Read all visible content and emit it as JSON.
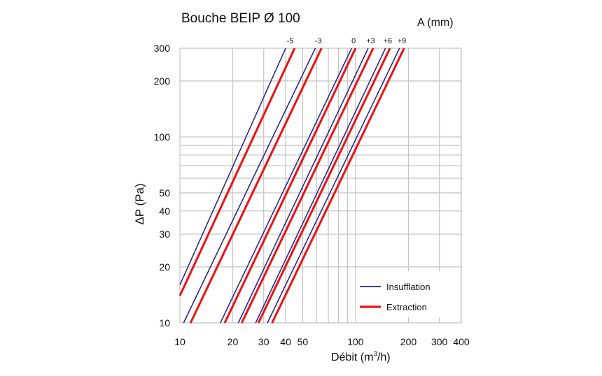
{
  "chart_data": {
    "type": "line",
    "title": "Bouche BEIP Ø 100",
    "curve_group_label": "A (mm)",
    "xlabel": {
      "prefix": "Débit (m",
      "sup": "3",
      "suffix": "/h)"
    },
    "ylabel": "ΔP (Pa)",
    "x_scale": "log",
    "y_scale": "log",
    "xlim": [
      10,
      400
    ],
    "ylim": [
      10,
      300
    ],
    "x_ticks": [
      "10",
      "20",
      "30",
      "40",
      "50",
      "100",
      "200",
      "300",
      "400"
    ],
    "y_ticks": [
      "10",
      "20",
      "30",
      "40",
      "50",
      "100",
      "200",
      "300"
    ],
    "grid": true,
    "legend": {
      "position": "bottom-right",
      "entries": [
        "Insufflation",
        "Extraction"
      ]
    },
    "series_colors": {
      "Insufflation": "#1f1f8f",
      "Extraction": "#ee1111"
    },
    "curves": [
      {
        "label": "-5",
        "insufflation": [
          [
            10,
            16
          ],
          [
            40,
            300
          ]
        ],
        "extraction": [
          [
            10,
            14
          ],
          [
            45,
            300
          ]
        ]
      },
      {
        "label": "-3",
        "insufflation": [
          [
            10.5,
            10
          ],
          [
            59,
            300
          ]
        ],
        "extraction": [
          [
            11.5,
            10
          ],
          [
            64,
            300
          ]
        ]
      },
      {
        "label": "0",
        "insufflation": [
          [
            17,
            10
          ],
          [
            95,
            300
          ]
        ],
        "extraction": [
          [
            18,
            10
          ],
          [
            100,
            300
          ]
        ]
      },
      {
        "label": "+3",
        "insufflation": [
          [
            21.5,
            10
          ],
          [
            118,
            300
          ]
        ],
        "extraction": [
          [
            22.5,
            10
          ],
          [
            126,
            300
          ]
        ]
      },
      {
        "label": "+6",
        "insufflation": [
          [
            27,
            10
          ],
          [
            148,
            300
          ]
        ],
        "extraction": [
          [
            28,
            10
          ],
          [
            157,
            300
          ]
        ]
      },
      {
        "label": "+9",
        "insufflation": [
          [
            31.5,
            10
          ],
          [
            178,
            300
          ]
        ],
        "extraction": [
          [
            33.5,
            10
          ],
          [
            189,
            300
          ]
        ]
      }
    ]
  }
}
